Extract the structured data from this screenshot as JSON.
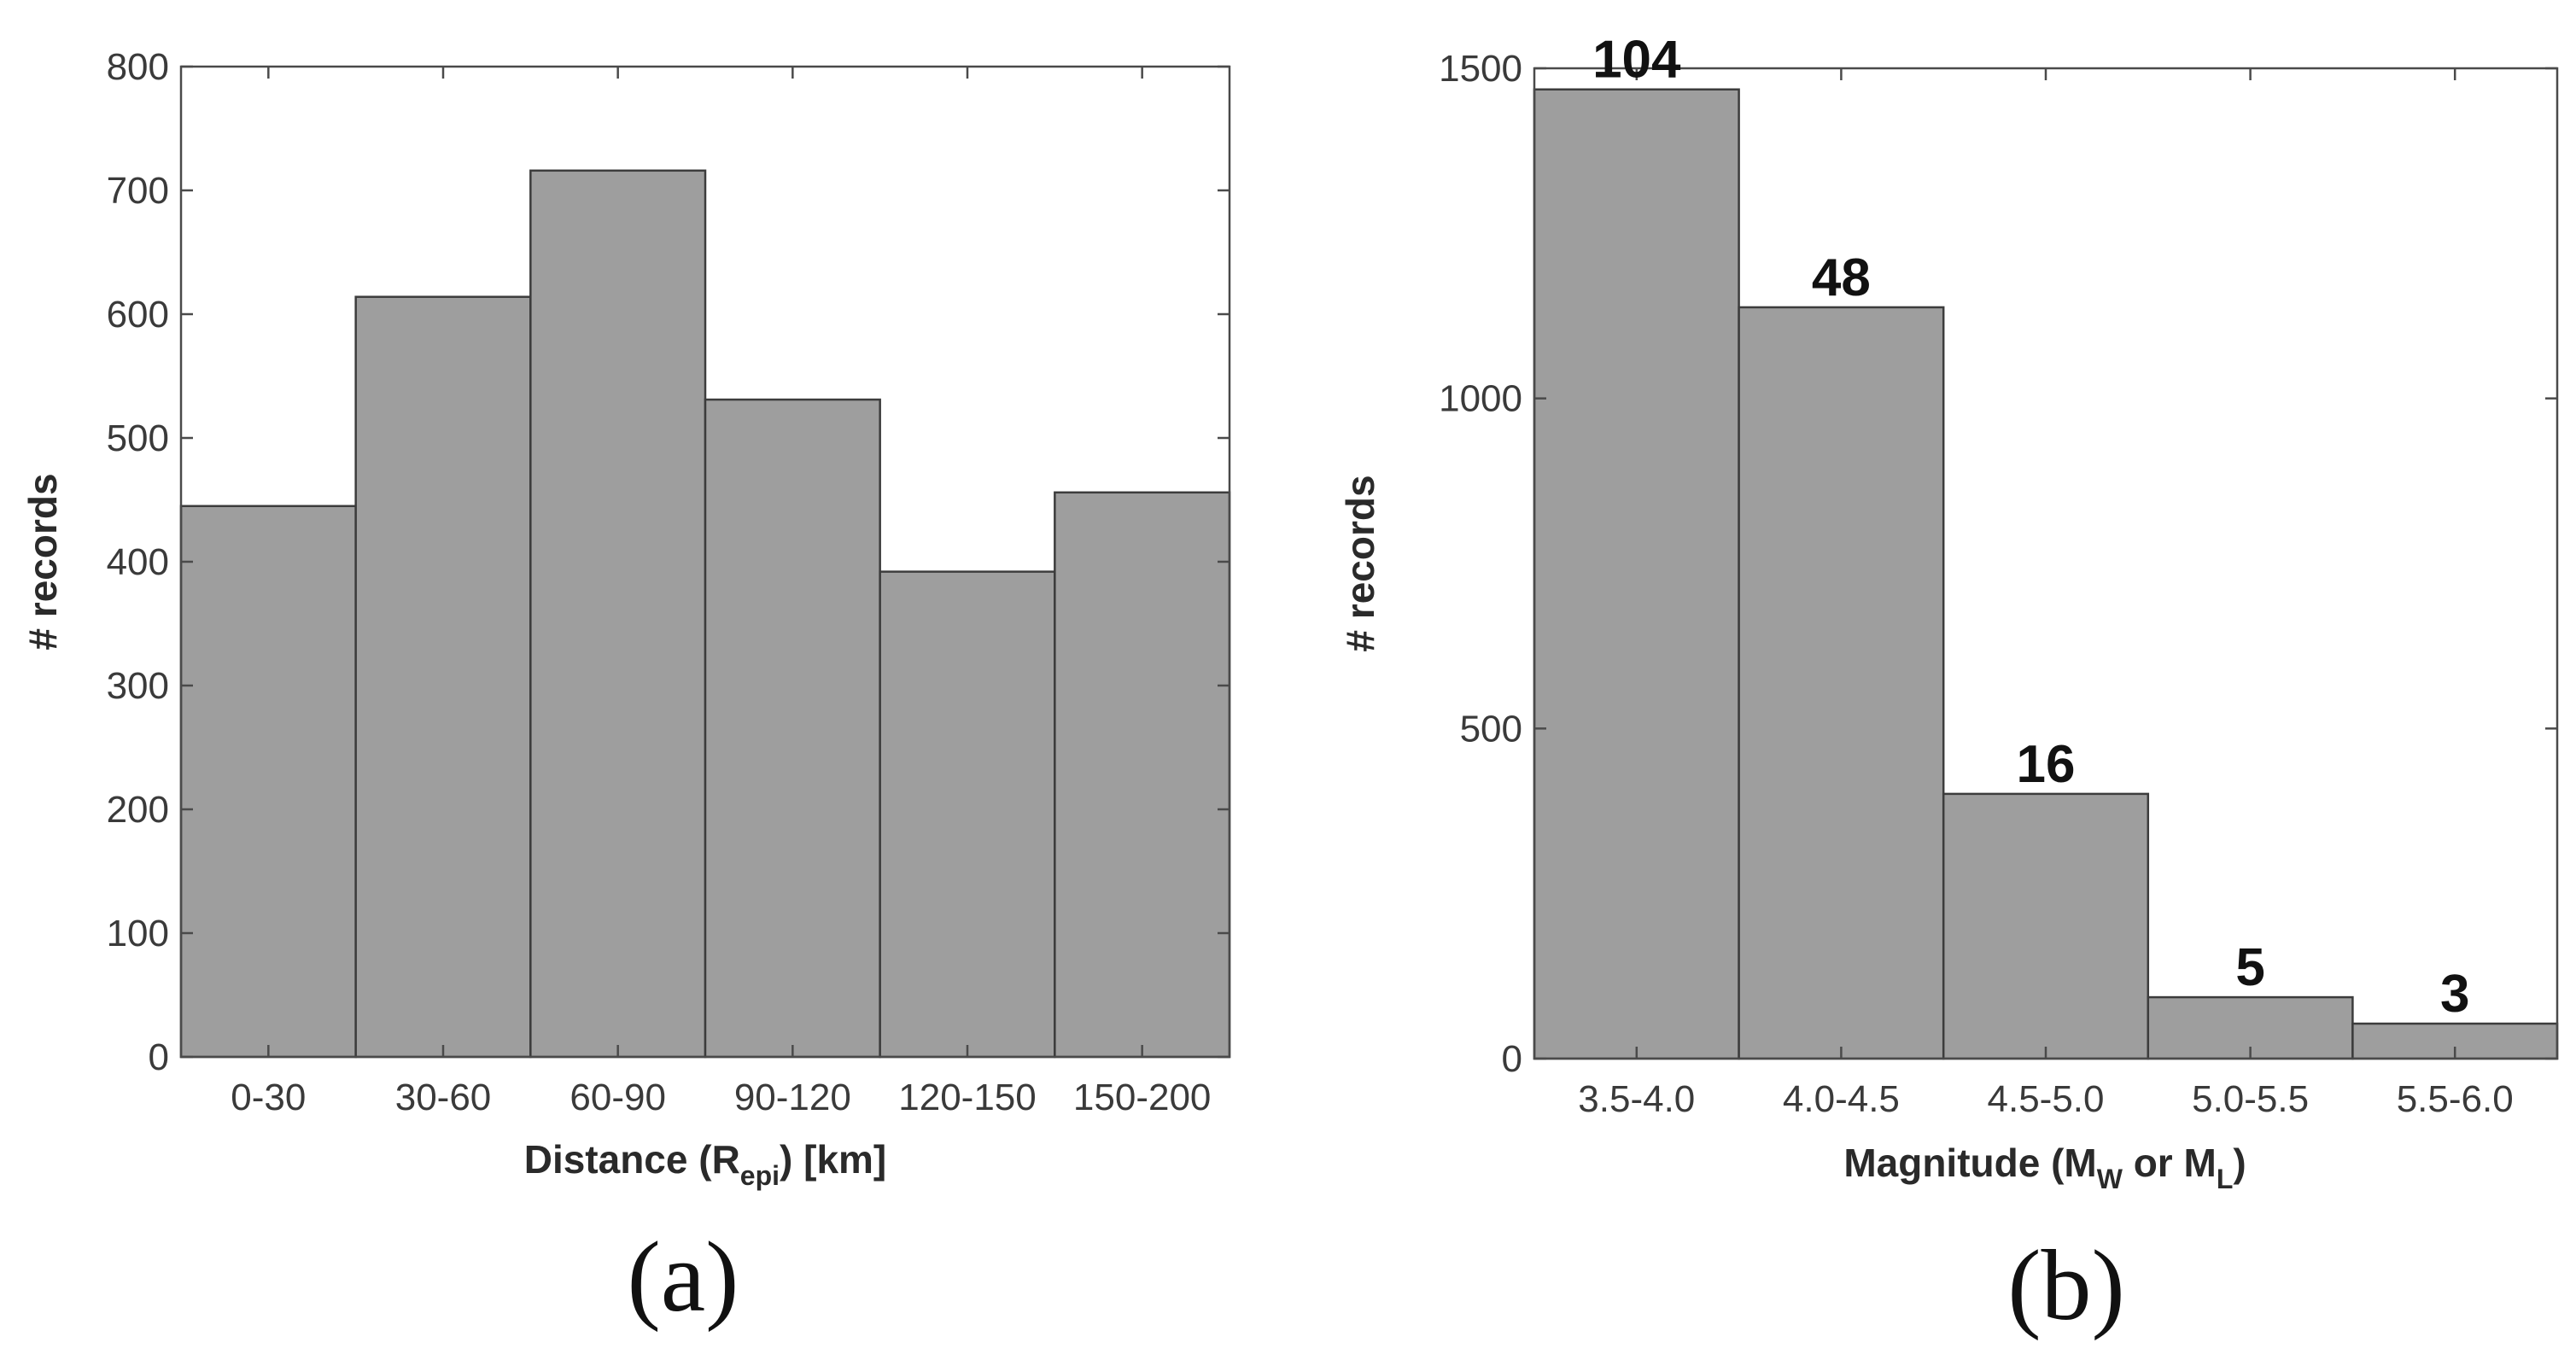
{
  "figure": {
    "panel_labels": [
      "(a)",
      "(b)"
    ]
  },
  "chart_data": [
    {
      "type": "bar",
      "panel": "(a)",
      "title": "",
      "categories": [
        "0-30",
        "30-60",
        "60-90",
        "90-120",
        "120-150",
        "150-200"
      ],
      "values": [
        445,
        614,
        716,
        531,
        392,
        456
      ],
      "xlabel": {
        "main": "Distance (R",
        "sub": "epi",
        "tail": ") [km]"
      },
      "ylabel": "# records",
      "ylim": [
        0,
        800
      ],
      "yticks": [
        0,
        100,
        200,
        300,
        400,
        500,
        600,
        700,
        800
      ],
      "grid": false,
      "bar_color": "#9e9e9e",
      "edge_color": "#3c3c3c",
      "data_labels": []
    },
    {
      "type": "bar",
      "panel": "(b)",
      "title": "",
      "categories": [
        "3.5-4.0",
        "4.0-4.5",
        "4.5-5.0",
        "5.0-5.5",
        "5.5-6.0"
      ],
      "values": [
        1468,
        1138,
        401,
        93,
        53
      ],
      "xlabel": {
        "p1": "Magnitude (M",
        "s1": "W",
        "p2": " or M",
        "s2": "L",
        "p3": ")"
      },
      "ylabel": "# records",
      "ylim": [
        0,
        1500
      ],
      "yticks": [
        0,
        500,
        1000,
        1500
      ],
      "grid": false,
      "bar_color": "#9e9e9e",
      "edge_color": "#3c3c3c",
      "data_labels": [
        "104",
        "48",
        "16",
        "5",
        "3"
      ]
    }
  ]
}
